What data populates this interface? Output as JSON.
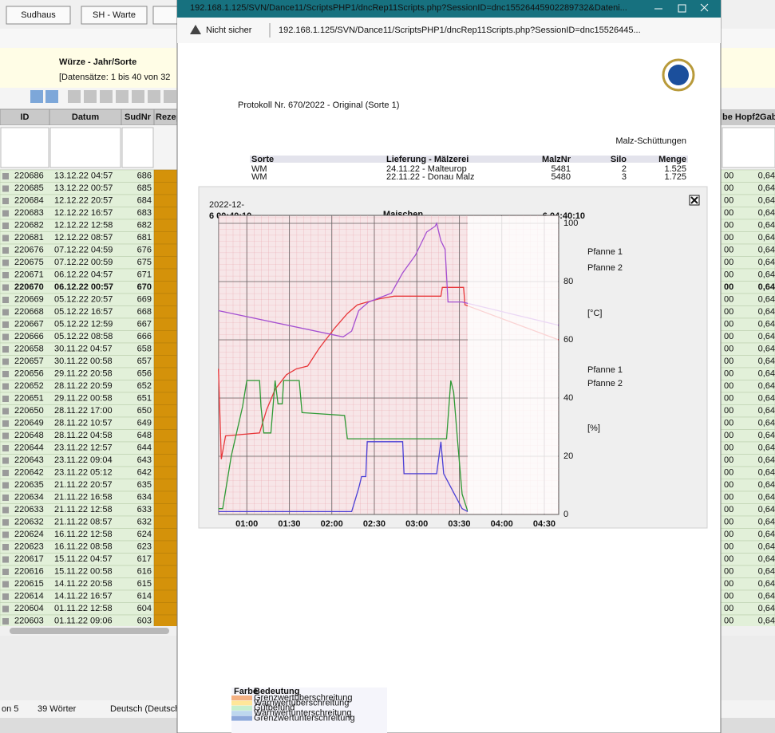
{
  "app": {
    "buttons": [
      "Sudhaus",
      "SH - Warte"
    ],
    "title": "Würze - Jahr/Sorte",
    "subtitle": "[Datensätze: 1 bis 40 von 32",
    "columns": [
      "ID",
      "Datum",
      "SudNr",
      "Rezep"
    ],
    "right_column": "be Hopf2Gab",
    "rows": [
      [
        "220686",
        "13.12.22 04:57",
        "686",
        "00",
        "0,64"
      ],
      [
        "220685",
        "13.12.22 00:57",
        "685",
        "00",
        "0,64"
      ],
      [
        "220684",
        "12.12.22 20:57",
        "684",
        "00",
        "0,64"
      ],
      [
        "220683",
        "12.12.22 16:57",
        "683",
        "00",
        "0,64"
      ],
      [
        "220682",
        "12.12.22 12:58",
        "682",
        "00",
        "0,64"
      ],
      [
        "220681",
        "12.12.22 08:57",
        "681",
        "00",
        "0,64"
      ],
      [
        "220676",
        "07.12.22 04:59",
        "676",
        "00",
        "0,64"
      ],
      [
        "220675",
        "07.12.22 00:59",
        "675",
        "00",
        "0,64"
      ],
      [
        "220671",
        "06.12.22 04:57",
        "671",
        "00",
        "0,64"
      ],
      [
        "220670",
        "06.12.22 00:57",
        "670",
        "00",
        "0,64"
      ],
      [
        "220669",
        "05.12.22 20:57",
        "669",
        "00",
        "0,64"
      ],
      [
        "220668",
        "05.12.22 16:57",
        "668",
        "00",
        "0,64"
      ],
      [
        "220667",
        "05.12.22 12:59",
        "667",
        "00",
        "0,64"
      ],
      [
        "220666",
        "05.12.22 08:58",
        "666",
        "00",
        "0,64"
      ],
      [
        "220658",
        "30.11.22 04:57",
        "658",
        "00",
        "0,64"
      ],
      [
        "220657",
        "30.11.22 00:58",
        "657",
        "00",
        "0,64"
      ],
      [
        "220656",
        "29.11.22 20:58",
        "656",
        "00",
        "0,64"
      ],
      [
        "220652",
        "28.11.22 20:59",
        "652",
        "00",
        "0,64"
      ],
      [
        "220651",
        "29.11.22 00:58",
        "651",
        "00",
        "0,64"
      ],
      [
        "220650",
        "28.11.22 17:00",
        "650",
        "00",
        "0,64"
      ],
      [
        "220649",
        "28.11.22 10:57",
        "649",
        "00",
        "0,64"
      ],
      [
        "220648",
        "28.11.22 04:58",
        "648",
        "00",
        "0,64"
      ],
      [
        "220644",
        "23.11.22 12:57",
        "644",
        "00",
        "0,64"
      ],
      [
        "220643",
        "23.11.22 09:04",
        "643",
        "00",
        "0,64"
      ],
      [
        "220642",
        "23.11.22 05:12",
        "642",
        "00",
        "0,64"
      ],
      [
        "220635",
        "21.11.22 20:57",
        "635",
        "00",
        "0,64"
      ],
      [
        "220634",
        "21.11.22 16:58",
        "634",
        "00",
        "0,64"
      ],
      [
        "220633",
        "21.11.22 12:58",
        "633",
        "00",
        "0,64"
      ],
      [
        "220632",
        "21.11.22 08:57",
        "632",
        "00",
        "0,64"
      ],
      [
        "220624",
        "16.11.22 12:58",
        "624",
        "00",
        "0,64"
      ],
      [
        "220623",
        "16.11.22 08:58",
        "623",
        "00",
        "0,64"
      ],
      [
        "220617",
        "15.11.22 04:57",
        "617",
        "00",
        "0,64"
      ],
      [
        "220616",
        "15.11.22 00:58",
        "616",
        "00",
        "0,64"
      ],
      [
        "220615",
        "14.11.22 20:58",
        "615",
        "00",
        "0,64"
      ],
      [
        "220614",
        "14.11.22 16:57",
        "614",
        "00",
        "0,64"
      ],
      [
        "220604",
        "01.11.22 12:58",
        "604",
        "00",
        "0,64"
      ],
      [
        "220603",
        "01.11.22 09:06",
        "603",
        "00",
        "0,64"
      ]
    ],
    "selected_row": 9,
    "status": [
      "on 5",
      "39 Wörter",
      "Deutsch (Deutsch"
    ]
  },
  "browser": {
    "title_url": "192.168.1.125/SVN/Dance11/ScriptsPHP1/dncRep11Scripts.php?SessionID=dnc15526445902289732&Dateni...",
    "security": "Nicht sicher",
    "url": "192.168.1.125/SVN/Dance11/ScriptsPHP1/dncRep11Scripts.php?SessionID=dnc15526445..."
  },
  "report": {
    "title": "Protokoll Nr. 670/2022 - Original (Sorte 1)",
    "section": "Malz-Schüttungen",
    "malt_table": {
      "header": [
        "Sorte",
        "Lieferung - Mälzerei",
        "MalzNr",
        "Silo",
        "Menge"
      ],
      "rows": [
        [
          "WM",
          "24.11.22 - Malteurop",
          "5481",
          "2",
          "1.525"
        ],
        [
          "WM",
          "22.11.22 - Donau Malz",
          "5480",
          "3",
          "1.725"
        ]
      ]
    },
    "legend_table": {
      "header": [
        "Farbe",
        "Bedeutung"
      ],
      "rows": [
        {
          "color": "#f4b183",
          "label": "Grenzwertüberschreitung"
        },
        {
          "color": "#ffe699",
          "label": "Warnwertüberschreitung"
        },
        {
          "color": "#c6efce",
          "label": "Gutbefund"
        },
        {
          "color": "#bdd7ee",
          "label": "Warnwertunterschreitung"
        },
        {
          "color": "#8ea9db",
          "label": "Grenzwertunterschreitung"
        }
      ]
    }
  },
  "chart_data": {
    "type": "line",
    "title": "Maischen",
    "start_label": [
      "2022-12-",
      "6 00:40:10"
    ],
    "end_label": "6 04:40:10",
    "xticks": [
      "01:00",
      "01:30",
      "02:00",
      "02:30",
      "03:00",
      "03:30",
      "04:00",
      "04:30"
    ],
    "ylim": [
      0,
      100
    ],
    "yticks": [
      0,
      20,
      40,
      60,
      80,
      100
    ],
    "unit_labels": [
      "[°C]",
      "[%]"
    ],
    "grid": true,
    "series": [
      {
        "name": "Pfanne 1",
        "color": "#e8373a",
        "x": [
          "00:40",
          "00:42",
          "00:45",
          "01:09",
          "01:14",
          "01:20",
          "01:28",
          "01:35",
          "01:43",
          "01:51",
          "02:02",
          "02:11",
          "02:18",
          "02:25",
          "02:33",
          "02:44",
          "03:17",
          "03:18",
          "03:33",
          "03:34",
          "04:40"
        ],
        "values": [
          50,
          19,
          27,
          28,
          36,
          43,
          48,
          50,
          51,
          57,
          64,
          69,
          72,
          73,
          74,
          75,
          75,
          78,
          78,
          72,
          60
        ]
      },
      {
        "name": "Pfanne 2",
        "color": "#a44fd1",
        "x": [
          "00:40",
          "02:08",
          "02:14",
          "02:19",
          "02:26",
          "02:42",
          "02:50",
          "02:59",
          "03:07",
          "03:13",
          "03:14",
          "03:17",
          "03:20",
          "03:22",
          "03:32",
          "04:40"
        ],
        "values": [
          70,
          61,
          63,
          70,
          73,
          76,
          83,
          89,
          97,
          99,
          100,
          94,
          91,
          73,
          73,
          65
        ]
      },
      {
        "name": "Pfanne 1",
        "color": "#2e9a35",
        "x": [
          "00:40",
          "00:43",
          "00:49",
          "00:57",
          "01:00",
          "01:09",
          "01:10",
          "01:12",
          "01:17",
          "01:20",
          "01:22",
          "01:25",
          "01:26",
          "01:37",
          "01:39",
          "02:09",
          "02:11",
          "03:21",
          "03:24",
          "03:26",
          "03:29",
          "03:32",
          "03:36"
        ],
        "values": [
          2,
          2,
          20,
          37,
          46,
          46,
          37,
          28,
          28,
          46,
          38,
          38,
          46,
          46,
          35,
          34,
          26,
          26,
          46,
          42,
          24,
          7,
          1
        ]
      },
      {
        "name": "Pfanne 2",
        "color": "#4a3fd6",
        "x": [
          "00:40",
          "02:14",
          "02:19",
          "02:21",
          "02:24",
          "02:25",
          "02:50",
          "02:51",
          "03:14",
          "03:17",
          "03:19",
          "03:32",
          "03:36"
        ],
        "values": [
          1,
          1,
          9,
          13,
          13,
          25,
          25,
          14,
          14,
          25,
          14,
          2,
          1
        ]
      }
    ]
  }
}
